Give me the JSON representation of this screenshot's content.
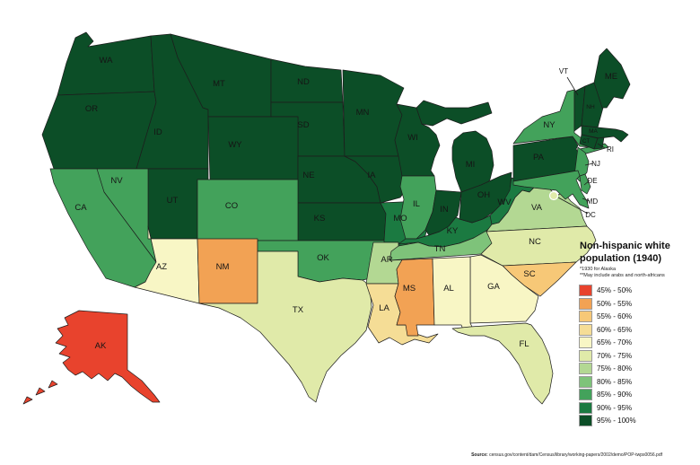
{
  "legend": {
    "title1": "Non-hispanic white",
    "title2": "population (1940)",
    "note1": "*1930 for Alaska",
    "note2": "**May include arabs and north-africans",
    "buckets": [
      {
        "label": "45% - 50%",
        "color": "#e8432d"
      },
      {
        "label": "50% - 55%",
        "color": "#f2a254"
      },
      {
        "label": "55% - 60%",
        "color": "#f7c877"
      },
      {
        "label": "60% - 65%",
        "color": "#f5dd96"
      },
      {
        "label": "65% - 70%",
        "color": "#f8f6c5"
      },
      {
        "label": "70% - 75%",
        "color": "#e0eaa9"
      },
      {
        "label": "75% - 80%",
        "color": "#b3d893"
      },
      {
        "label": "80% - 85%",
        "color": "#7ec37a"
      },
      {
        "label": "85% - 90%",
        "color": "#43a25b"
      },
      {
        "label": "90% - 95%",
        "color": "#1b7a41"
      },
      {
        "label": "95% - 100%",
        "color": "#0c4e27"
      }
    ]
  },
  "source": {
    "label": "Source:",
    "path": " census.gov/content/dam/Census/library/working-papers/2002/demo/POP-twps0056.pdf"
  },
  "map": {
    "states": [
      {
        "abbr": "WA",
        "bucket": 10
      },
      {
        "abbr": "OR",
        "bucket": 10
      },
      {
        "abbr": "CA",
        "bucket": 8
      },
      {
        "abbr": "ID",
        "bucket": 10
      },
      {
        "abbr": "NV",
        "bucket": 8
      },
      {
        "abbr": "UT",
        "bucket": 10
      },
      {
        "abbr": "AZ",
        "bucket": 4
      },
      {
        "abbr": "MT",
        "bucket": 10
      },
      {
        "abbr": "WY",
        "bucket": 10
      },
      {
        "abbr": "CO",
        "bucket": 8
      },
      {
        "abbr": "NM",
        "bucket": 1
      },
      {
        "abbr": "ND",
        "bucket": 10
      },
      {
        "abbr": "SD",
        "bucket": 10
      },
      {
        "abbr": "NE",
        "bucket": 10
      },
      {
        "abbr": "KS",
        "bucket": 10
      },
      {
        "abbr": "OK",
        "bucket": 8
      },
      {
        "abbr": "TX",
        "bucket": 5
      },
      {
        "abbr": "MN",
        "bucket": 10
      },
      {
        "abbr": "IA",
        "bucket": 10
      },
      {
        "abbr": "MO",
        "bucket": 9
      },
      {
        "abbr": "AR",
        "bucket": 6
      },
      {
        "abbr": "LA",
        "bucket": 3
      },
      {
        "abbr": "WI",
        "bucket": 10
      },
      {
        "abbr": "IL",
        "bucket": 8
      },
      {
        "abbr": "MS",
        "bucket": 1
      },
      {
        "abbr": "MI",
        "bucket": 10
      },
      {
        "abbr": "IN",
        "bucket": 10
      },
      {
        "abbr": "KY",
        "bucket": 9
      },
      {
        "abbr": "TN",
        "bucket": 7
      },
      {
        "abbr": "OH",
        "bucket": 10
      },
      {
        "abbr": "WV",
        "bucket": 9
      },
      {
        "abbr": "VA",
        "bucket": 6
      },
      {
        "abbr": "NC",
        "bucket": 5
      },
      {
        "abbr": "SC",
        "bucket": 2
      },
      {
        "abbr": "GA",
        "bucket": 4
      },
      {
        "abbr": "AL",
        "bucket": 4
      },
      {
        "abbr": "FL",
        "bucket": 5
      },
      {
        "abbr": "PA",
        "bucket": 10
      },
      {
        "abbr": "NY",
        "bucket": 8
      },
      {
        "abbr": "NJ",
        "bucket": 8
      },
      {
        "abbr": "DE",
        "bucket": 8
      },
      {
        "abbr": "MD",
        "bucket": 8
      },
      {
        "abbr": "DC",
        "bucket": 5
      },
      {
        "abbr": "VT",
        "bucket": 10
      },
      {
        "abbr": "NH",
        "bucket": 10
      },
      {
        "abbr": "MA",
        "bucket": 10
      },
      {
        "abbr": "CT",
        "bucket": 10
      },
      {
        "abbr": "RI",
        "bucket": 10
      },
      {
        "abbr": "ME",
        "bucket": 10
      },
      {
        "abbr": "AK",
        "bucket": 0
      }
    ]
  }
}
